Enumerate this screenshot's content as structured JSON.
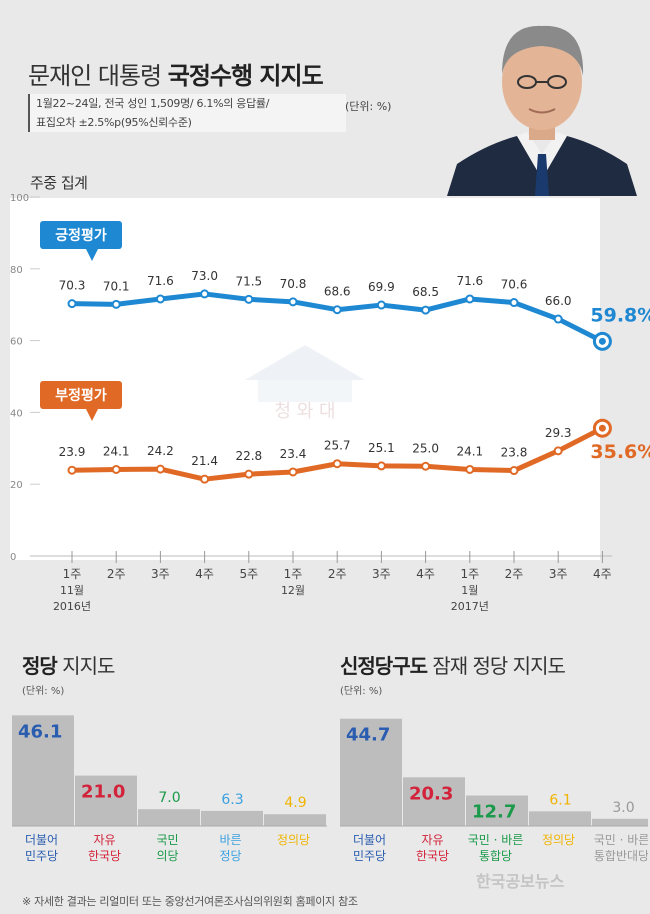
{
  "header": {
    "title_normal": "문재인 대통령 ",
    "title_bold": "국정수행 지지도",
    "survey_line1": "1월22~24일, 전국 성인 1,509명/ 6.1%의 응답률/",
    "survey_line2": "표집오차 ±2.5%p(95%신뢰수준)",
    "unit": "(단위: %)",
    "weekly_label": "주중 집계"
  },
  "parties": {
    "title_bold": "정당",
    "title_normal": " 지지도",
    "unit": "(단위: %)"
  },
  "new_parties": {
    "title_bold": "신정당구도",
    "title_normal": " 잠재 정당 지지도",
    "unit": "(단위: %)"
  },
  "footer": "※ 자세한 결과는 리얼미터 또는 중앙선거여론조사심의위원회 홈페이지 참조",
  "watermark": "한국공보뉴스",
  "emblem_text": "청 와 대",
  "colors": {
    "approval": "#1e88d2",
    "disapproval": "#e06a25",
    "minju": "#2a5db0",
    "jayu": "#d2233a",
    "gukmin": "#1a9a4a",
    "bareun": "#3aa0e0",
    "jeongui": "#f0b400",
    "tonghap": "#999999",
    "bar": "#bdbdbd"
  },
  "chart_data": [
    {
      "type": "line",
      "x": [
        "1주",
        "2주",
        "3주",
        "4주",
        "5주",
        "1주",
        "2주",
        "3주",
        "4주",
        "1주",
        "2주",
        "3주",
        "4주"
      ],
      "month_labels": [
        {
          "index": 0,
          "month": "11월",
          "year": "2016년"
        },
        {
          "index": 5,
          "month": "12월",
          "year": ""
        },
        {
          "index": 9,
          "month": "1월",
          "year": "2017년"
        }
      ],
      "series": [
        {
          "name": "긍정평가",
          "color": "#1e88d2",
          "values": [
            70.3,
            70.1,
            71.6,
            73.0,
            71.5,
            70.8,
            68.6,
            69.9,
            68.5,
            71.6,
            70.6,
            66.0,
            59.8
          ],
          "labels": [
            "70.3",
            "70.1",
            "71.6",
            "73.0",
            "71.5",
            "70.8",
            "68.6",
            "69.9",
            "68.5",
            "71.6",
            "70.6",
            "66.0",
            "59.8%"
          ]
        },
        {
          "name": "부정평가",
          "color": "#e06a25",
          "values": [
            23.9,
            24.1,
            24.2,
            21.4,
            22.8,
            23.4,
            25.7,
            25.1,
            25.0,
            24.1,
            23.8,
            29.3,
            35.6
          ],
          "labels": [
            "23.9",
            "24.1",
            "24.2",
            "21.4",
            "22.8",
            "23.4",
            "25.7",
            "25.1",
            "25.0",
            "24.1",
            "23.8",
            "29.3",
            "35.6%"
          ]
        }
      ],
      "ylim": [
        0,
        100
      ],
      "yticks": [
        0,
        20,
        40,
        60,
        80,
        100
      ],
      "grid": false
    },
    {
      "type": "bar",
      "categories": [
        "더불어\n민주당",
        "자유\n한국당",
        "국민\n의당",
        "바른\n정당",
        "정의당"
      ],
      "values": [
        46.1,
        21.0,
        7.0,
        6.3,
        4.9
      ],
      "value_labels": [
        "46.1",
        "21.0",
        "7.0",
        "6.3",
        "4.9"
      ],
      "label_colors": [
        "#2a5db0",
        "#d2233a",
        "#1a9a4a",
        "#3aa0e0",
        "#f0b400"
      ]
    },
    {
      "type": "bar",
      "categories": [
        "더불어\n민주당",
        "자유\n한국당",
        "국민 · 바른\n통합당",
        "정의당",
        "국민 · 바른\n통합반대당"
      ],
      "values": [
        44.7,
        20.3,
        12.7,
        6.1,
        3.0
      ],
      "value_labels": [
        "44.7",
        "20.3",
        "12.7",
        "6.1",
        "3.0"
      ],
      "label_colors": [
        "#2a5db0",
        "#d2233a",
        "#1a9a4a",
        "#f0b400",
        "#999999"
      ]
    }
  ]
}
